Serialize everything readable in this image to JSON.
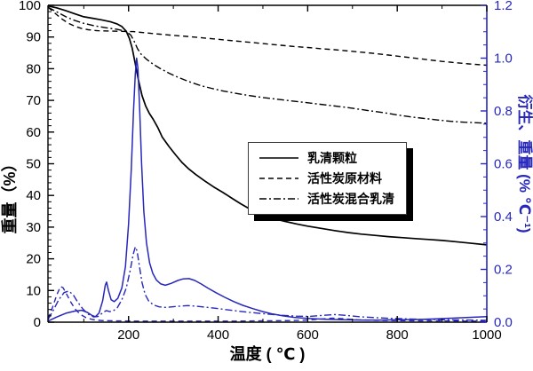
{
  "figure": {
    "background": "#ffffff",
    "black": "#000000",
    "blue": "#2727bb"
  },
  "axes": {
    "x": {
      "label": "温度 ( ℃ )",
      "min": 20,
      "max": 1000,
      "major_tick_labels": [
        "200",
        "400",
        "600",
        "800",
        "1000"
      ],
      "minor_step": 100
    },
    "y_left": {
      "label": "重量（%）",
      "min": 0,
      "max": 100,
      "major_tick_labels": [
        "0",
        "10",
        "20",
        "30",
        "40",
        "50",
        "60",
        "70",
        "80",
        "90",
        "100"
      ],
      "minor_step": 2
    },
    "y_right": {
      "label": "衍生、重量 (% ℃⁻¹)",
      "min": 0,
      "max": 1.2,
      "major_tick_labels": [
        "0.0",
        "0.2",
        "0.4",
        "0.6",
        "0.8",
        "1.0",
        "1.2"
      ],
      "minor_step": 0.05
    }
  },
  "legend": {
    "items": [
      {
        "label": "乳清颗粒",
        "dash_pattern": ""
      },
      {
        "label": "活性炭原材料",
        "dash_pattern": "6,4"
      },
      {
        "label": "活性炭混合乳清",
        "dash_pattern": "8,3,2,3"
      }
    ]
  },
  "chart_data": {
    "type": "line",
    "title": "",
    "xlabel": "温度 ( ℃ )",
    "ylabel_left": "重量（%）",
    "ylabel_right": "衍生、重量 (% ℃⁻¹)",
    "x_range": [
      20,
      1000
    ],
    "y_left_range": [
      0,
      100
    ],
    "y_right_range": [
      0,
      1.2
    ],
    "grid": false,
    "legend_position": "inside-center-right",
    "series": [
      {
        "name": "乳清颗粒 (重量)",
        "axis": "left",
        "color": "#000000",
        "dash": "",
        "width": 1.7,
        "points": [
          [
            20,
            99.8
          ],
          [
            40,
            99.2
          ],
          [
            60,
            98.3
          ],
          [
            80,
            97.3
          ],
          [
            100,
            96.4
          ],
          [
            120,
            95.9
          ],
          [
            140,
            95.4
          ],
          [
            160,
            94.8
          ],
          [
            175,
            94.1
          ],
          [
            185,
            93.3
          ],
          [
            195,
            91.8
          ],
          [
            202,
            89.5
          ],
          [
            208,
            86.5
          ],
          [
            215,
            81.5
          ],
          [
            222,
            76.5
          ],
          [
            230,
            71.5
          ],
          [
            238,
            68.3
          ],
          [
            246,
            66.0
          ],
          [
            255,
            64.0
          ],
          [
            265,
            61.5
          ],
          [
            275,
            58.5
          ],
          [
            290,
            55.5
          ],
          [
            305,
            52.8
          ],
          [
            320,
            50.3
          ],
          [
            335,
            48.3
          ],
          [
            350,
            46.6
          ],
          [
            370,
            44.6
          ],
          [
            390,
            42.7
          ],
          [
            410,
            41.0
          ],
          [
            430,
            39.2
          ],
          [
            450,
            37.4
          ],
          [
            470,
            35.8
          ],
          [
            490,
            34.5
          ],
          [
            510,
            33.4
          ],
          [
            530,
            32.5
          ],
          [
            550,
            31.8
          ],
          [
            575,
            31.0
          ],
          [
            600,
            30.3
          ],
          [
            630,
            29.6
          ],
          [
            660,
            28.9
          ],
          [
            690,
            28.3
          ],
          [
            720,
            27.8
          ],
          [
            750,
            27.4
          ],
          [
            780,
            27.0
          ],
          [
            810,
            26.7
          ],
          [
            840,
            26.4
          ],
          [
            870,
            26.1
          ],
          [
            900,
            25.8
          ],
          [
            930,
            25.4
          ],
          [
            960,
            25.0
          ],
          [
            1000,
            24.4
          ]
        ]
      },
      {
        "name": "活性炭原材料 (重量)",
        "axis": "left",
        "color": "#000000",
        "dash": "6,4",
        "width": 1.4,
        "points": [
          [
            20,
            99.4
          ],
          [
            35,
            97.6
          ],
          [
            50,
            95.8
          ],
          [
            65,
            94.4
          ],
          [
            80,
            93.4
          ],
          [
            95,
            92.7
          ],
          [
            110,
            92.3
          ],
          [
            130,
            92.0
          ],
          [
            155,
            91.9
          ],
          [
            180,
            91.8
          ],
          [
            210,
            91.7
          ],
          [
            240,
            91.3
          ],
          [
            270,
            90.9
          ],
          [
            300,
            90.5
          ],
          [
            330,
            90.2
          ],
          [
            360,
            89.8
          ],
          [
            390,
            89.4
          ],
          [
            420,
            89.0
          ],
          [
            450,
            88.6
          ],
          [
            480,
            88.2
          ],
          [
            510,
            87.8
          ],
          [
            540,
            87.4
          ],
          [
            570,
            87.0
          ],
          [
            600,
            86.7
          ],
          [
            630,
            86.3
          ],
          [
            660,
            86.0
          ],
          [
            690,
            85.6
          ],
          [
            720,
            85.2
          ],
          [
            750,
            84.8
          ],
          [
            780,
            84.3
          ],
          [
            810,
            83.8
          ],
          [
            840,
            83.3
          ],
          [
            870,
            82.8
          ],
          [
            900,
            82.3
          ],
          [
            930,
            81.9
          ],
          [
            960,
            81.5
          ],
          [
            1000,
            81.1
          ]
        ]
      },
      {
        "name": "活性炭混合乳清 (重量)",
        "axis": "left",
        "color": "#000000",
        "dash": "8,3,2,3",
        "width": 1.4,
        "points": [
          [
            20,
            99.4
          ],
          [
            40,
            97.9
          ],
          [
            60,
            96.4
          ],
          [
            80,
            95.2
          ],
          [
            100,
            94.3
          ],
          [
            125,
            93.5
          ],
          [
            150,
            92.9
          ],
          [
            175,
            92.4
          ],
          [
            195,
            91.7
          ],
          [
            205,
            90.6
          ],
          [
            212,
            88.8
          ],
          [
            220,
            86.3
          ],
          [
            228,
            84.6
          ],
          [
            240,
            83.0
          ],
          [
            255,
            81.4
          ],
          [
            270,
            80.1
          ],
          [
            290,
            78.6
          ],
          [
            310,
            77.3
          ],
          [
            335,
            75.9
          ],
          [
            360,
            74.7
          ],
          [
            385,
            73.8
          ],
          [
            410,
            73.0
          ],
          [
            440,
            72.2
          ],
          [
            470,
            71.5
          ],
          [
            500,
            70.9
          ],
          [
            530,
            70.4
          ],
          [
            560,
            69.9
          ],
          [
            590,
            69.4
          ],
          [
            620,
            68.9
          ],
          [
            650,
            68.4
          ],
          [
            680,
            67.9
          ],
          [
            710,
            67.3
          ],
          [
            740,
            66.7
          ],
          [
            770,
            66.1
          ],
          [
            800,
            65.4
          ],
          [
            830,
            64.8
          ],
          [
            860,
            64.3
          ],
          [
            890,
            63.8
          ],
          [
            920,
            63.4
          ],
          [
            950,
            63.1
          ],
          [
            1000,
            62.8
          ]
        ]
      },
      {
        "name": "乳清颗粒 (衍生重量)",
        "axis": "right",
        "color": "#2727bb",
        "dash": "",
        "width": 1.5,
        "points": [
          [
            20,
            0.004
          ],
          [
            40,
            0.02
          ],
          [
            60,
            0.034
          ],
          [
            80,
            0.042
          ],
          [
            95,
            0.045
          ],
          [
            108,
            0.037
          ],
          [
            118,
            0.026
          ],
          [
            126,
            0.021
          ],
          [
            134,
            0.035
          ],
          [
            142,
            0.08
          ],
          [
            148,
            0.14
          ],
          [
            151,
            0.152
          ],
          [
            155,
            0.12
          ],
          [
            161,
            0.085
          ],
          [
            168,
            0.078
          ],
          [
            176,
            0.09
          ],
          [
            185,
            0.13
          ],
          [
            193,
            0.21
          ],
          [
            200,
            0.37
          ],
          [
            206,
            0.58
          ],
          [
            211,
            0.8
          ],
          [
            215,
            0.94
          ],
          [
            218,
            1.0
          ],
          [
            221,
            0.96
          ],
          [
            225,
            0.8
          ],
          [
            229,
            0.6
          ],
          [
            234,
            0.42
          ],
          [
            240,
            0.3
          ],
          [
            247,
            0.225
          ],
          [
            254,
            0.185
          ],
          [
            262,
            0.16
          ],
          [
            272,
            0.145
          ],
          [
            282,
            0.14
          ],
          [
            295,
            0.147
          ],
          [
            310,
            0.158
          ],
          [
            322,
            0.164
          ],
          [
            335,
            0.165
          ],
          [
            348,
            0.158
          ],
          [
            362,
            0.145
          ],
          [
            378,
            0.128
          ],
          [
            395,
            0.112
          ],
          [
            415,
            0.094
          ],
          [
            435,
            0.078
          ],
          [
            455,
            0.064
          ],
          [
            478,
            0.051
          ],
          [
            500,
            0.04
          ],
          [
            522,
            0.031
          ],
          [
            545,
            0.024
          ],
          [
            570,
            0.018
          ],
          [
            600,
            0.014
          ],
          [
            640,
            0.011
          ],
          [
            680,
            0.009
          ],
          [
            720,
            0.008
          ],
          [
            760,
            0.008
          ],
          [
            800,
            0.009
          ],
          [
            840,
            0.01
          ],
          [
            880,
            0.012
          ],
          [
            920,
            0.015
          ],
          [
            960,
            0.018
          ],
          [
            1000,
            0.021
          ]
        ]
      },
      {
        "name": "活性炭原材料 (衍生重量)",
        "axis": "right",
        "color": "#2727bb",
        "dash": "6,4",
        "width": 1.4,
        "points": [
          [
            20,
            0.012
          ],
          [
            30,
            0.055
          ],
          [
            40,
            0.105
          ],
          [
            48,
            0.135
          ],
          [
            54,
            0.13
          ],
          [
            62,
            0.105
          ],
          [
            72,
            0.073
          ],
          [
            82,
            0.047
          ],
          [
            92,
            0.03
          ],
          [
            105,
            0.017
          ],
          [
            120,
            0.01
          ],
          [
            140,
            0.006
          ],
          [
            170,
            0.005
          ],
          [
            210,
            0.004
          ],
          [
            260,
            0.004
          ],
          [
            320,
            0.004
          ],
          [
            380,
            0.004
          ],
          [
            440,
            0.004
          ],
          [
            500,
            0.005
          ],
          [
            560,
            0.006
          ],
          [
            600,
            0.008
          ],
          [
            630,
            0.012
          ],
          [
            655,
            0.015
          ],
          [
            680,
            0.013
          ],
          [
            710,
            0.009
          ],
          [
            750,
            0.007
          ],
          [
            800,
            0.006
          ],
          [
            850,
            0.005
          ],
          [
            900,
            0.005
          ],
          [
            950,
            0.004
          ],
          [
            1000,
            0.004
          ]
        ]
      },
      {
        "name": "活性炭混合乳清 (衍生重量)",
        "axis": "right",
        "color": "#2727bb",
        "dash": "8,3,2,3",
        "width": 1.4,
        "points": [
          [
            20,
            0.01
          ],
          [
            32,
            0.045
          ],
          [
            44,
            0.085
          ],
          [
            56,
            0.112
          ],
          [
            66,
            0.118
          ],
          [
            76,
            0.105
          ],
          [
            86,
            0.077
          ],
          [
            98,
            0.05
          ],
          [
            110,
            0.03
          ],
          [
            122,
            0.02
          ],
          [
            132,
            0.022
          ],
          [
            142,
            0.035
          ],
          [
            150,
            0.044
          ],
          [
            158,
            0.04
          ],
          [
            166,
            0.043
          ],
          [
            175,
            0.055
          ],
          [
            185,
            0.085
          ],
          [
            195,
            0.13
          ],
          [
            204,
            0.2
          ],
          [
            210,
            0.255
          ],
          [
            215,
            0.285
          ],
          [
            219,
            0.27
          ],
          [
            224,
            0.215
          ],
          [
            230,
            0.15
          ],
          [
            237,
            0.105
          ],
          [
            245,
            0.08
          ],
          [
            255,
            0.066
          ],
          [
            268,
            0.058
          ],
          [
            282,
            0.056
          ],
          [
            298,
            0.058
          ],
          [
            315,
            0.061
          ],
          [
            332,
            0.063
          ],
          [
            350,
            0.061
          ],
          [
            370,
            0.057
          ],
          [
            392,
            0.053
          ],
          [
            415,
            0.048
          ],
          [
            440,
            0.043
          ],
          [
            465,
            0.038
          ],
          [
            490,
            0.034
          ],
          [
            515,
            0.03
          ],
          [
            545,
            0.026
          ],
          [
            575,
            0.023
          ],
          [
            605,
            0.022
          ],
          [
            635,
            0.026
          ],
          [
            660,
            0.029
          ],
          [
            685,
            0.026
          ],
          [
            715,
            0.021
          ],
          [
            750,
            0.017
          ],
          [
            790,
            0.014
          ],
          [
            830,
            0.012
          ],
          [
            870,
            0.01
          ],
          [
            910,
            0.009
          ],
          [
            950,
            0.008
          ],
          [
            1000,
            0.007
          ]
        ]
      }
    ]
  }
}
